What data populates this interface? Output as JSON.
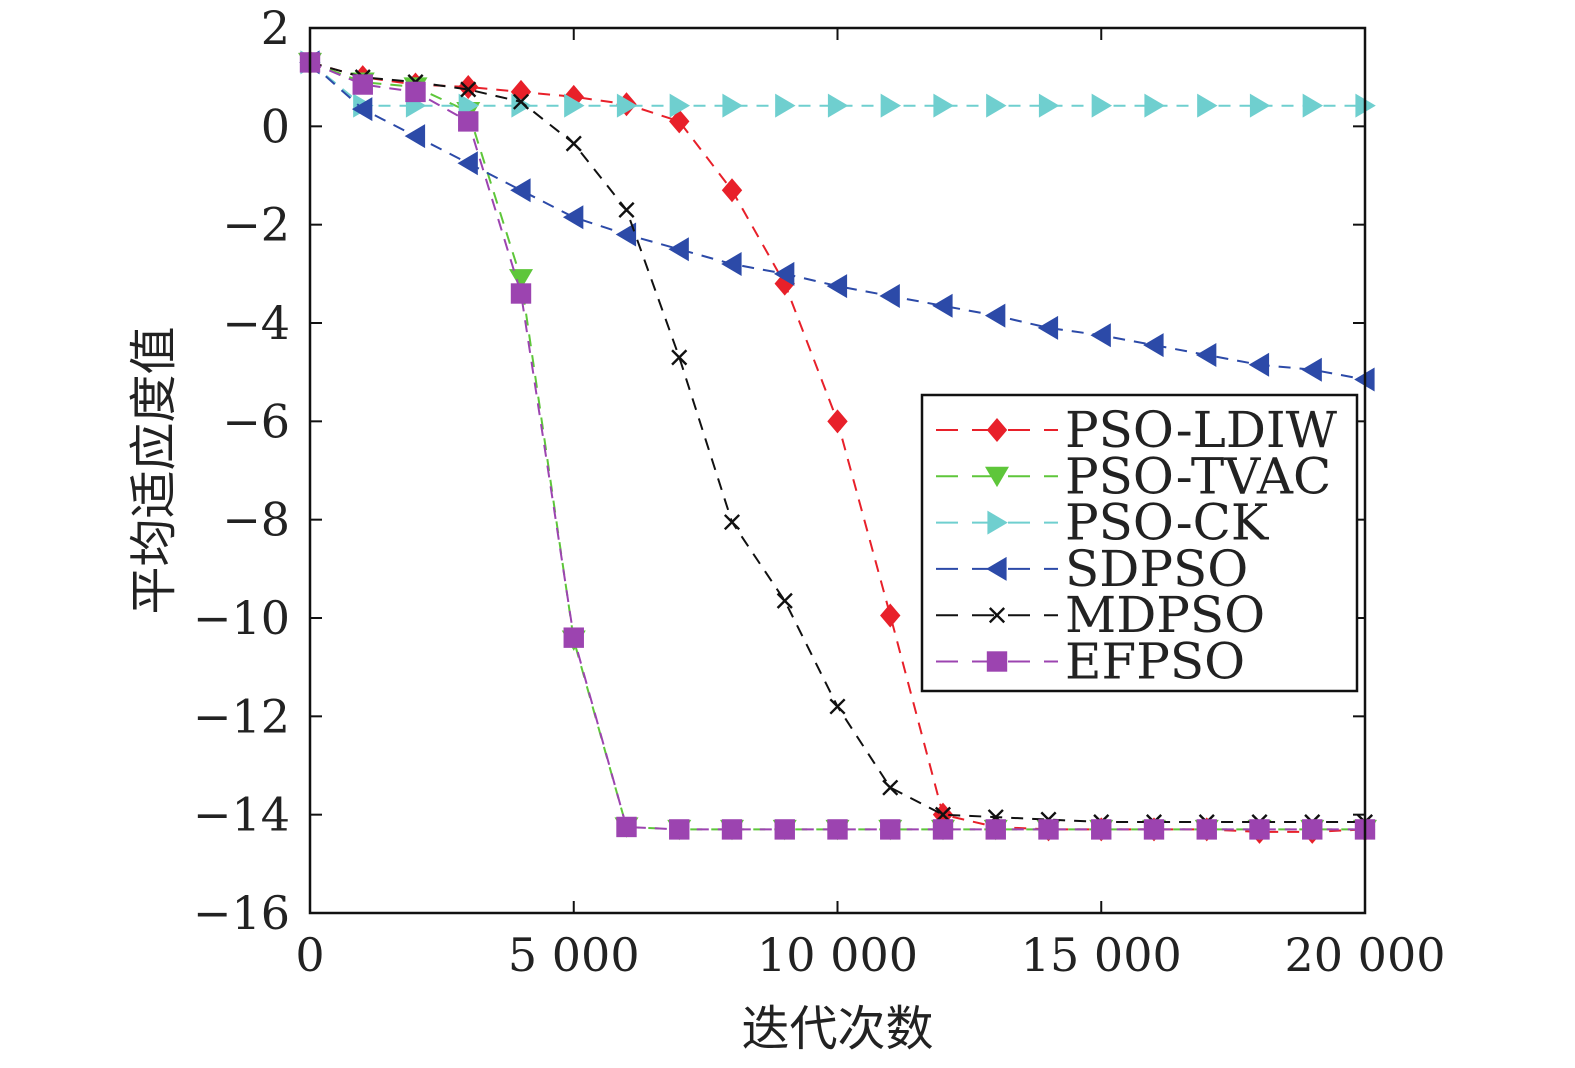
{
  "chart_data": {
    "type": "line",
    "title": "",
    "xlabel": "迭代次数",
    "ylabel": "平均适应度值",
    "xlim": [
      0,
      20000
    ],
    "ylim": [
      -16,
      2
    ],
    "xticks": [
      0,
      5000,
      10000,
      15000,
      20000
    ],
    "xtick_labels": [
      "0",
      "5 000",
      "10 000",
      "15 000",
      "20 000"
    ],
    "yticks": [
      2,
      0,
      -2,
      -4,
      -6,
      -8,
      -10,
      -12,
      -14,
      -16
    ],
    "ytick_labels": [
      "2",
      "0",
      "−2",
      "−4",
      "−6",
      "−8",
      "−10",
      "−12",
      "−14",
      "−16"
    ],
    "grid": false,
    "legend_position": "center-right",
    "series": [
      {
        "name": "PSO-LDIW",
        "color": "#e8202a",
        "marker": "diamond",
        "dash": "dashed",
        "x": [
          0,
          1000,
          2000,
          3000,
          4000,
          5000,
          6000,
          7000,
          8000,
          9000,
          10000,
          11000,
          12000,
          13000,
          14000,
          15000,
          16000,
          17000,
          18000,
          19000,
          20000
        ],
        "y": [
          1.3,
          1.0,
          0.85,
          0.8,
          0.7,
          0.6,
          0.45,
          0.1,
          -1.3,
          -3.2,
          -6.0,
          -9.95,
          -14.0,
          -14.25,
          -14.3,
          -14.3,
          -14.3,
          -14.3,
          -14.35,
          -14.35,
          -14.3
        ]
      },
      {
        "name": "PSO-TVAC",
        "color": "#5ec63a",
        "marker": "triangle-down",
        "dash": "dashed",
        "x": [
          0,
          1000,
          2000,
          3000,
          4000,
          5000,
          6000,
          7000,
          8000,
          9000,
          10000,
          11000,
          12000,
          13000,
          14000,
          15000,
          16000,
          17000,
          18000,
          19000,
          20000
        ],
        "y": [
          1.3,
          0.9,
          0.8,
          0.3,
          -3.1,
          -10.45,
          -14.25,
          -14.3,
          -14.3,
          -14.3,
          -14.3,
          -14.3,
          -14.3,
          -14.3,
          -14.3,
          -14.3,
          -14.3,
          -14.3,
          -14.3,
          -14.3,
          -14.3
        ]
      },
      {
        "name": "PSO-CK",
        "color": "#6fcfcf",
        "marker": "triangle-right",
        "dash": "dashed",
        "x": [
          0,
          1000,
          2000,
          3000,
          4000,
          5000,
          6000,
          7000,
          8000,
          9000,
          10000,
          11000,
          12000,
          13000,
          14000,
          15000,
          16000,
          17000,
          18000,
          19000,
          20000
        ],
        "y": [
          1.3,
          0.42,
          0.42,
          0.42,
          0.42,
          0.42,
          0.42,
          0.42,
          0.42,
          0.42,
          0.42,
          0.42,
          0.42,
          0.42,
          0.42,
          0.42,
          0.42,
          0.42,
          0.42,
          0.42,
          0.42
        ]
      },
      {
        "name": "SDPSO",
        "color": "#2c4aa8",
        "marker": "triangle-left",
        "dash": "dashed",
        "x": [
          0,
          1000,
          2000,
          3000,
          4000,
          5000,
          6000,
          7000,
          8000,
          9000,
          10000,
          11000,
          12000,
          13000,
          14000,
          15000,
          16000,
          17000,
          18000,
          19000,
          20000
        ],
        "y": [
          1.3,
          0.35,
          -0.2,
          -0.75,
          -1.3,
          -1.85,
          -2.2,
          -2.5,
          -2.8,
          -3.0,
          -3.25,
          -3.45,
          -3.65,
          -3.85,
          -4.1,
          -4.25,
          -4.45,
          -4.65,
          -4.85,
          -4.95,
          -5.15
        ]
      },
      {
        "name": "MDPSO",
        "color": "#111111",
        "marker": "x",
        "dash": "dashed",
        "x": [
          0,
          1000,
          2000,
          3000,
          4000,
          5000,
          6000,
          7000,
          8000,
          9000,
          10000,
          11000,
          12000,
          13000,
          14000,
          15000,
          16000,
          17000,
          18000,
          19000,
          20000
        ],
        "y": [
          1.3,
          1.0,
          0.9,
          0.75,
          0.5,
          -0.35,
          -1.7,
          -4.7,
          -8.05,
          -9.65,
          -11.8,
          -13.45,
          -14.0,
          -14.05,
          -14.1,
          -14.15,
          -14.15,
          -14.15,
          -14.15,
          -14.15,
          -14.15
        ]
      },
      {
        "name": "EFPSO",
        "color": "#9c44b0",
        "marker": "square",
        "dash": "dashed",
        "x": [
          0,
          1000,
          2000,
          3000,
          4000,
          5000,
          6000,
          7000,
          8000,
          9000,
          10000,
          11000,
          12000,
          13000,
          14000,
          15000,
          16000,
          17000,
          18000,
          19000,
          20000
        ],
        "y": [
          1.3,
          0.85,
          0.7,
          0.1,
          -3.4,
          -10.4,
          -14.25,
          -14.3,
          -14.3,
          -14.3,
          -14.3,
          -14.3,
          -14.3,
          -14.3,
          -14.3,
          -14.3,
          -14.3,
          -14.3,
          -14.3,
          -14.3,
          -14.3
        ]
      }
    ]
  }
}
